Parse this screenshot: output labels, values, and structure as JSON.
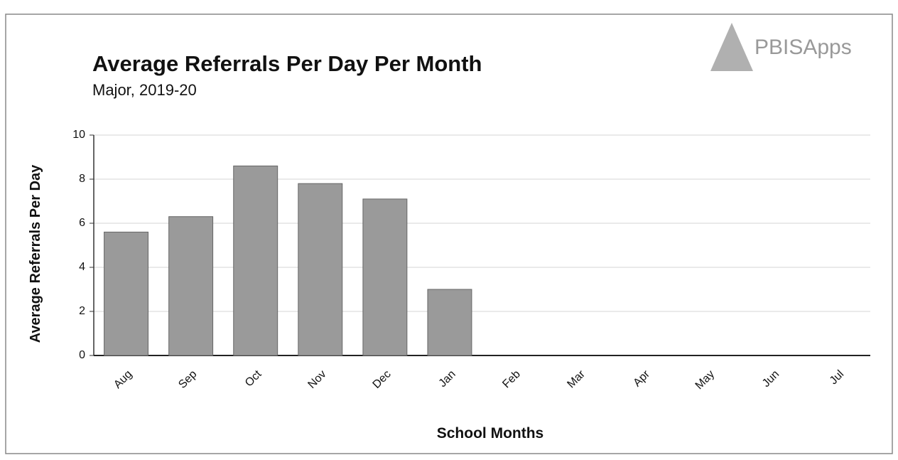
{
  "logo_text": "PBISApps",
  "chart_data": {
    "type": "bar",
    "title": "Average Referrals Per Day Per Month",
    "subtitle": "Major, 2019-20",
    "x_label": "School Months",
    "y_label": "Average Referrals Per Day",
    "categories": [
      "Aug",
      "Sep",
      "Oct",
      "Nov",
      "Dec",
      "Jan",
      "Feb",
      "Mar",
      "Apr",
      "May",
      "Jun",
      "Jul"
    ],
    "values": [
      5.6,
      6.3,
      8.6,
      7.8,
      7.1,
      3.0,
      null,
      null,
      null,
      null,
      null,
      null
    ],
    "color": "#9a9a9a",
    "ylim": [
      0,
      10
    ],
    "yticks": [
      0,
      2,
      4,
      6,
      8,
      10
    ],
    "grid": true
  }
}
